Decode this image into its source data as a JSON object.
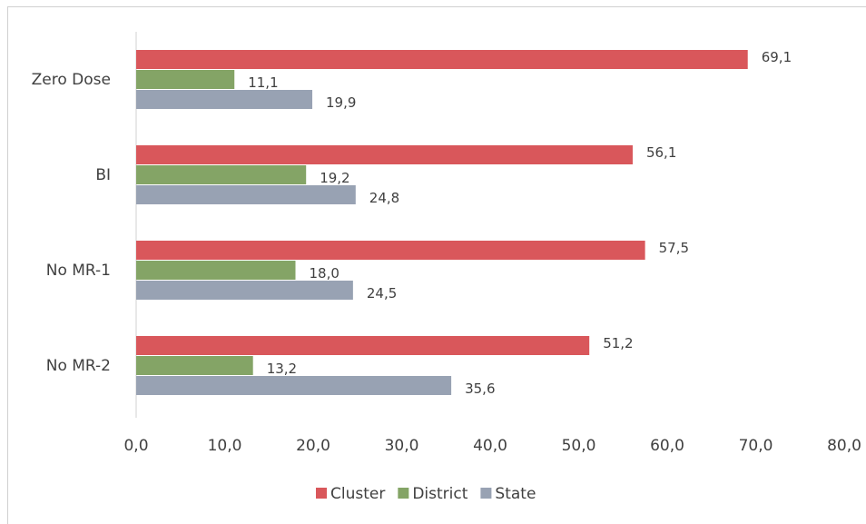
{
  "chart_data": {
    "type": "bar",
    "orientation": "horizontal",
    "categories": [
      "Zero Dose",
      "BI",
      "No MR-1",
      "No MR-2"
    ],
    "series": [
      {
        "name": "Cluster",
        "color": "#d9575b",
        "values": [
          69.1,
          56.1,
          57.5,
          51.2
        ],
        "value_labels": [
          "69,1",
          "56,1",
          "57,5",
          "51,2"
        ]
      },
      {
        "name": "District",
        "color": "#84a466",
        "values": [
          11.1,
          19.2,
          18.0,
          13.2
        ],
        "value_labels": [
          "11,1",
          "19,2",
          "18,0",
          "13,2"
        ]
      },
      {
        "name": "State",
        "color": "#98a2b3",
        "values": [
          19.9,
          24.8,
          24.5,
          35.6
        ],
        "value_labels": [
          "19,9",
          "24,8",
          "24,5",
          "35,6"
        ]
      }
    ],
    "xlim": [
      0,
      80
    ],
    "xticks": [
      {
        "value": 0,
        "label": "0,0"
      },
      {
        "value": 10,
        "label": "10,0"
      },
      {
        "value": 20,
        "label": "20,0"
      },
      {
        "value": 30,
        "label": "30,0"
      },
      {
        "value": 40,
        "label": "40,0"
      },
      {
        "value": 50,
        "label": "50,0"
      },
      {
        "value": 60,
        "label": "60,0"
      },
      {
        "value": 70,
        "label": "70,0"
      },
      {
        "value": 80,
        "label": "80,0"
      }
    ],
    "legend": "bottom"
  }
}
